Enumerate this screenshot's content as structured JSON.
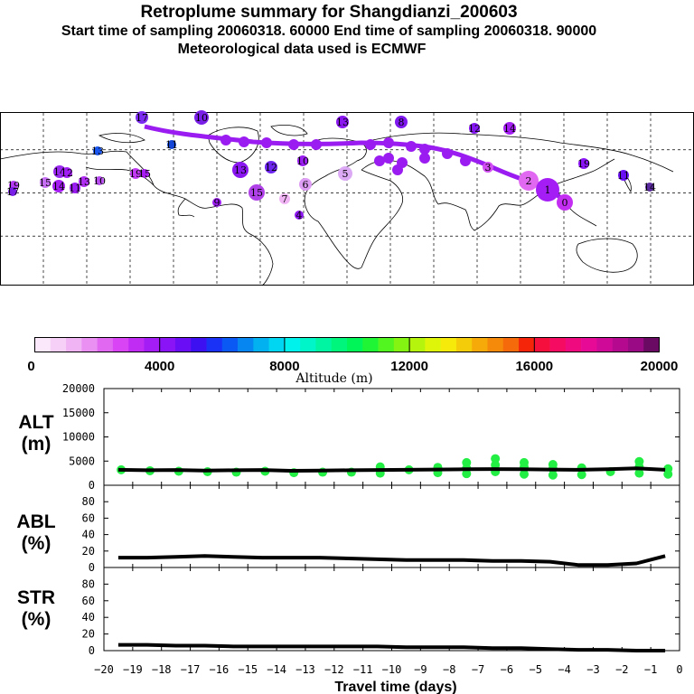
{
  "header": {
    "title": "Retroplume summary for Shangdianzi_200603",
    "sampling": "Start time of sampling 20060318. 60000     End time of sampling 20060318. 90000",
    "met": "Meteorological data used is ECMWF"
  },
  "colorbar": {
    "label": "Altitude (m)",
    "tick_labels": [
      "0",
      "4000",
      "8000",
      "12000",
      "16000",
      "20000"
    ],
    "colors": [
      "#fbe9fb",
      "#f7d0f7",
      "#f0b4f4",
      "#ea90f3",
      "#e169f2",
      "#d945f5",
      "#c12cf5",
      "#a51df5",
      "#8a14f5",
      "#6a0ff5",
      "#3c10f0",
      "#1a32f5",
      "#0a59f5",
      "#0586f0",
      "#02b1ef",
      "#00d6f2",
      "#00f2ec",
      "#00f5c8",
      "#00f5a2",
      "#00f57c",
      "#00f558",
      "#20f535",
      "#52f51f",
      "#84f512",
      "#b5f50d",
      "#def50a",
      "#f5ea0a",
      "#f5cc0a",
      "#f5aa0a",
      "#f58a0a",
      "#f56a0a",
      "#f5250a",
      "#f50f3c",
      "#f50c62",
      "#f00a80",
      "#e60a96",
      "#cf0a98",
      "#b50a8f",
      "#9a0a85",
      "#6a0a62"
    ]
  },
  "map": {
    "plume_color": "#9a1cf0",
    "labels": [
      {
        "t": "17",
        "c": "#7b2cf0"
      },
      {
        "t": "10",
        "c": "#7a1fe8"
      },
      {
        "t": "13",
        "c": "#8a16f0"
      },
      {
        "t": "8",
        "c": "#7f18ee"
      },
      {
        "t": "12",
        "c": "#8316f0"
      },
      {
        "t": "14",
        "c": "#a41df2"
      },
      {
        "t": "13",
        "c": "#1a56f0"
      },
      {
        "t": "11",
        "c": "#1245d8"
      },
      {
        "t": "14",
        "c": "#9b28f0"
      },
      {
        "t": "12",
        "c": "#a21df3"
      },
      {
        "t": "19",
        "c": "#c23af3"
      },
      {
        "t": "15",
        "c": "#a71cf2"
      },
      {
        "t": "13",
        "c": "#b02ef2"
      },
      {
        "t": "10",
        "c": "#b94cf2"
      },
      {
        "t": "19",
        "c": "#b43bf2"
      },
      {
        "t": "15",
        "c": "#c76ff4"
      },
      {
        "t": "14",
        "c": "#a51df3"
      },
      {
        "t": "11",
        "c": "#9a1cf2"
      },
      {
        "t": "13",
        "c": "#8a16f0"
      },
      {
        "t": "12",
        "c": "#6d24ef"
      },
      {
        "t": "10",
        "c": "#9b1cf1"
      },
      {
        "t": "5",
        "c": "#dcaaf5"
      },
      {
        "t": "6",
        "c": "#de9df4"
      },
      {
        "t": "7",
        "c": "#f0b4f4"
      },
      {
        "t": "9",
        "c": "#9c1ef0"
      },
      {
        "t": "4",
        "c": "#8d17f0"
      },
      {
        "t": "2",
        "c": "#e169f2"
      },
      {
        "t": "3",
        "c": "#d24ef2"
      },
      {
        "t": "1",
        "c": "#a51df5"
      },
      {
        "t": "0",
        "c": "#c32ef2"
      },
      {
        "t": "19",
        "c": "#8a14f5"
      },
      {
        "t": "11",
        "c": "#6a0ff5"
      },
      {
        "t": "14",
        "c": "#5b2aa0"
      },
      {
        "t": "17",
        "c": "#7a1fe8"
      },
      {
        "t": "15",
        "c": "#b040e8"
      }
    ]
  },
  "chart_data": [
    {
      "type": "scatter+line",
      "name": "ALT",
      "ylabel": "ALT\n(m)",
      "ylim": [
        0,
        20000
      ],
      "yticks": [
        0,
        5000,
        10000,
        15000,
        20000
      ],
      "x": [
        -19.5,
        -18.5,
        -17.5,
        -16.5,
        -15.5,
        -14.5,
        -13.5,
        -12.5,
        -11.5,
        -10.5,
        -9.5,
        -8.5,
        -7.5,
        -6.5,
        -5.5,
        -4.5,
        -3.5,
        -2.5,
        -1.5,
        -0.5
      ],
      "line_values": [
        3200,
        3100,
        3150,
        3050,
        3100,
        3150,
        3000,
        3050,
        3100,
        3150,
        3200,
        3250,
        3300,
        3350,
        3300,
        3250,
        3200,
        3300,
        3500,
        3200
      ],
      "points": [
        {
          "x": -19.4,
          "y": 3200
        },
        {
          "x": -18.4,
          "y": 3000
        },
        {
          "x": -17.4,
          "y": 2900
        },
        {
          "x": -16.4,
          "y": 2800
        },
        {
          "x": -15.4,
          "y": 2700
        },
        {
          "x": -14.4,
          "y": 2900
        },
        {
          "x": -13.4,
          "y": 2600
        },
        {
          "x": -12.4,
          "y": 2700
        },
        {
          "x": -11.4,
          "y": 2700
        },
        {
          "x": -10.4,
          "y": 2500
        },
        {
          "x": -10.4,
          "y": 3800
        },
        {
          "x": -9.4,
          "y": 3200
        },
        {
          "x": -8.4,
          "y": 2600
        },
        {
          "x": -8.4,
          "y": 3700
        },
        {
          "x": -7.4,
          "y": 2400
        },
        {
          "x": -7.4,
          "y": 3500
        },
        {
          "x": -7.4,
          "y": 4700
        },
        {
          "x": -6.4,
          "y": 2800
        },
        {
          "x": -6.4,
          "y": 4200
        },
        {
          "x": -6.4,
          "y": 5500
        },
        {
          "x": -5.4,
          "y": 2300
        },
        {
          "x": -5.4,
          "y": 3800
        },
        {
          "x": -5.4,
          "y": 4700
        },
        {
          "x": -4.4,
          "y": 2100
        },
        {
          "x": -4.4,
          "y": 3400
        },
        {
          "x": -4.4,
          "y": 4300
        },
        {
          "x": -3.4,
          "y": 2200
        },
        {
          "x": -3.4,
          "y": 3600
        },
        {
          "x": -2.4,
          "y": 2800
        },
        {
          "x": -1.4,
          "y": 2500
        },
        {
          "x": -1.4,
          "y": 3800
        },
        {
          "x": -1.4,
          "y": 4900
        },
        {
          "x": -0.4,
          "y": 2300
        },
        {
          "x": -0.4,
          "y": 3400
        }
      ],
      "point_color": "#22ee44"
    },
    {
      "type": "line",
      "name": "ABL",
      "ylabel": "ABL\n(%)",
      "ylim": [
        0,
        100
      ],
      "yticks": [
        0,
        20,
        40,
        60,
        80
      ],
      "x": [
        -19.5,
        -18.5,
        -17.5,
        -16.5,
        -15.5,
        -14.5,
        -13.5,
        -12.5,
        -11.5,
        -10.5,
        -9.5,
        -8.5,
        -7.5,
        -6.5,
        -5.5,
        -4.5,
        -3.5,
        -2.5,
        -1.5,
        -0.5
      ],
      "values": [
        12,
        12,
        13,
        14,
        13,
        12,
        12,
        12,
        11,
        10,
        9,
        9,
        9,
        8,
        8,
        7,
        3,
        3,
        5,
        14
      ]
    },
    {
      "type": "line",
      "name": "STR",
      "ylabel": "STR\n(%)",
      "ylim": [
        0,
        100
      ],
      "yticks": [
        0,
        20,
        40,
        60,
        80
      ],
      "xlabel": "Travel time (days)",
      "xticks": [
        -20,
        -19,
        -18,
        -17,
        -16,
        -15,
        -14,
        -13,
        -12,
        -11,
        -10,
        -9,
        -8,
        -7,
        -6,
        -5,
        -4,
        -3,
        -2,
        -1,
        0
      ],
      "xlim": [
        -20,
        0
      ],
      "x": [
        -19.5,
        -18.5,
        -17.5,
        -16.5,
        -15.5,
        -14.5,
        -13.5,
        -12.5,
        -11.5,
        -10.5,
        -9.5,
        -8.5,
        -7.5,
        -6.5,
        -5.5,
        -4.5,
        -3.5,
        -2.5,
        -1.5,
        -0.5
      ],
      "values": [
        7,
        7,
        6,
        6,
        5,
        5,
        5,
        5,
        5,
        5,
        4,
        4,
        4,
        3,
        3,
        2,
        1,
        1,
        0,
        0
      ]
    }
  ]
}
